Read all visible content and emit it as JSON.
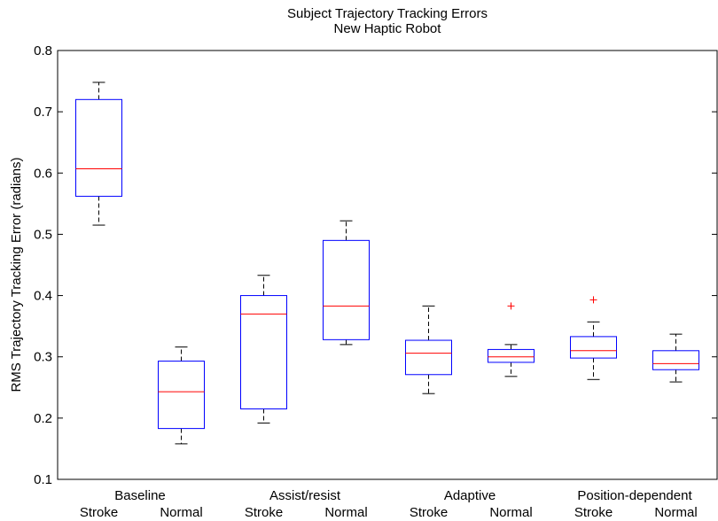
{
  "chart_data": {
    "type": "box",
    "title": "Subject Trajectory Tracking Errors",
    "subtitle": "New Haptic Robot",
    "ylabel": "RMS Trajectory Tracking Error (radians)",
    "xlabel": "",
    "ylim": [
      0.1,
      0.8
    ],
    "yticks": [
      0.1,
      0.2,
      0.3,
      0.4,
      0.5,
      0.6,
      0.7,
      0.8
    ],
    "ytick_labels": [
      "0.1",
      "0.2",
      "0.3",
      "0.4",
      "0.5",
      "0.6",
      "0.7",
      "0.8"
    ],
    "groups": [
      {
        "label": "Baseline",
        "members": [
          "Stroke",
          "Normal"
        ]
      },
      {
        "label": "Assist/resist",
        "members": [
          "Stroke",
          "Normal"
        ]
      },
      {
        "label": "Adaptive",
        "members": [
          "Stroke",
          "Normal"
        ]
      },
      {
        "label": "Position-dependent",
        "members": [
          "Stroke",
          "Normal"
        ]
      }
    ],
    "boxes": [
      {
        "group": "Baseline",
        "category": "Stroke",
        "whisker_low": 0.515,
        "q1": 0.562,
        "median": 0.607,
        "q3": 0.72,
        "whisker_high": 0.748,
        "outliers": []
      },
      {
        "group": "Baseline",
        "category": "Normal",
        "whisker_low": 0.158,
        "q1": 0.183,
        "median": 0.243,
        "q3": 0.293,
        "whisker_high": 0.316,
        "outliers": []
      },
      {
        "group": "Assist/resist",
        "category": "Stroke",
        "whisker_low": 0.192,
        "q1": 0.215,
        "median": 0.37,
        "q3": 0.4,
        "whisker_high": 0.433,
        "outliers": []
      },
      {
        "group": "Assist/resist",
        "category": "Normal",
        "whisker_low": 0.32,
        "q1": 0.328,
        "median": 0.383,
        "q3": 0.49,
        "whisker_high": 0.522,
        "outliers": []
      },
      {
        "group": "Adaptive",
        "category": "Stroke",
        "whisker_low": 0.24,
        "q1": 0.271,
        "median": 0.306,
        "q3": 0.327,
        "whisker_high": 0.383,
        "outliers": []
      },
      {
        "group": "Adaptive",
        "category": "Normal",
        "whisker_low": 0.268,
        "q1": 0.291,
        "median": 0.3,
        "q3": 0.312,
        "whisker_high": 0.32,
        "outliers": [
          0.383
        ]
      },
      {
        "group": "Position-dependent",
        "category": "Stroke",
        "whisker_low": 0.263,
        "q1": 0.298,
        "median": 0.31,
        "q3": 0.333,
        "whisker_high": 0.357,
        "outliers": [
          0.393
        ]
      },
      {
        "group": "Position-dependent",
        "category": "Normal",
        "whisker_low": 0.259,
        "q1": 0.279,
        "median": 0.289,
        "q3": 0.31,
        "whisker_high": 0.337,
        "outliers": []
      }
    ],
    "colors": {
      "box": "#0000ff",
      "median": "#ff0000",
      "whisker": "#000000",
      "outlier": "#ff0000"
    },
    "grid": false,
    "legend": "none"
  }
}
